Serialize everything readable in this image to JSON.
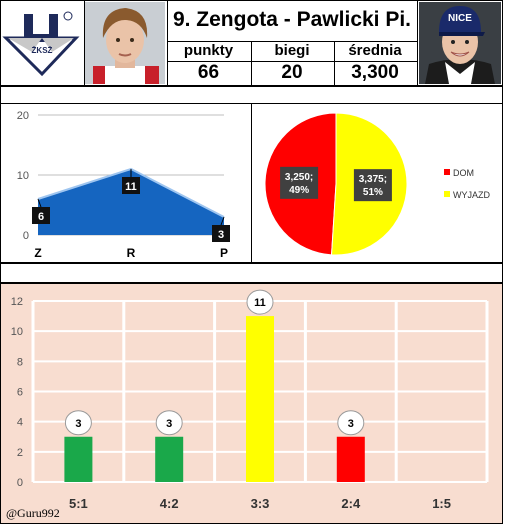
{
  "header": {
    "title": "9. Zengota - Pawlicki Pi.",
    "stats": [
      {
        "label": "punkty",
        "value": "66"
      },
      {
        "label": "biegi",
        "value": "20"
      },
      {
        "label": "średnia",
        "value": "3,300"
      }
    ],
    "logo_text": "ŻKSŻ",
    "right_cap_text": "NICE"
  },
  "credit": "@Guru992",
  "colors": {
    "zrp_fill": "#1565c0",
    "pie_dom": "#ff0000",
    "pie_wyjazd": "#ffff00",
    "bar_green": "#1aa84a",
    "bar_yellow": "#ffff00",
    "bar_red": "#ff0000",
    "bottom_bg": "#f8ddd0"
  },
  "chart_data": [
    {
      "type": "area",
      "categories": [
        "Z",
        "R",
        "P"
      ],
      "values": [
        6,
        11,
        3
      ],
      "ylim": [
        0,
        20
      ],
      "yticks": [
        "0",
        "10",
        "20"
      ],
      "grid": true
    },
    {
      "type": "pie",
      "slices": [
        {
          "name": "DOM",
          "value": 49,
          "label_line1": "3,250;",
          "label_line2": "49%"
        },
        {
          "name": "WYJAZD",
          "value": 51,
          "label_line1": "3,375;",
          "label_line2": "51%"
        }
      ],
      "legend": "right"
    },
    {
      "type": "bar",
      "categories": [
        "5:1",
        "4:2",
        "3:3",
        "2:4",
        "1:5"
      ],
      "values": [
        3,
        3,
        11,
        3,
        0
      ],
      "ylim": [
        0,
        12
      ],
      "yticks": [
        "0",
        "2",
        "4",
        "6",
        "8",
        "10",
        "12"
      ],
      "grid": true
    }
  ]
}
